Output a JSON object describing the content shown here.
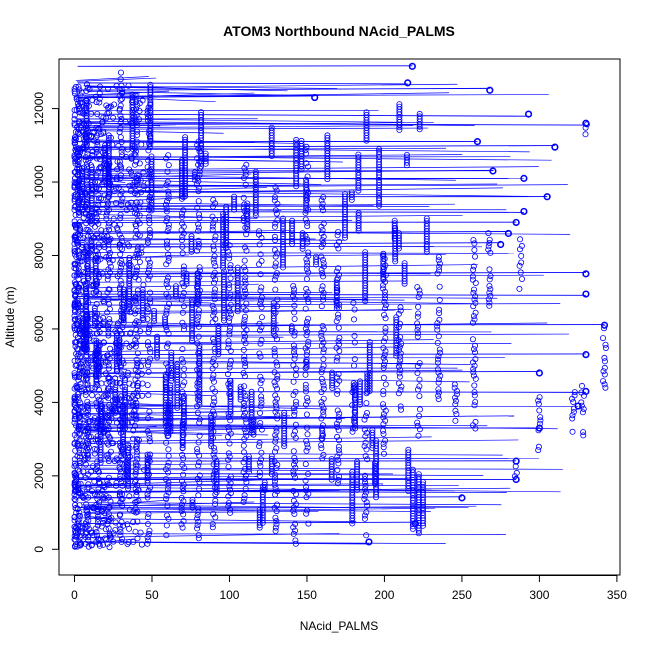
{
  "chart_data": {
    "type": "scatter",
    "title": "ATOM3 Northbound NAcid_PALMS",
    "xlabel": "NAcid_PALMS",
    "ylabel": "Altitude (m)",
    "xlim": [
      -10,
      352
    ],
    "ylim": [
      -700,
      13350
    ],
    "x_ticks": [
      0,
      50,
      100,
      150,
      200,
      250,
      300,
      350
    ],
    "x_tick_labels": [
      "0",
      "50",
      "100",
      "150",
      "200",
      "250",
      "300",
      "350"
    ],
    "y_ticks": [
      0,
      2000,
      4000,
      6000,
      8000,
      10000,
      12000
    ],
    "y_tick_labels": [
      "0",
      "2000",
      "4000",
      "6000",
      "8000",
      "10000",
      "12000"
    ],
    "grid": false,
    "legend": "none",
    "series_color": "#0000ff",
    "point_style": "open-circle",
    "lines_connected": true,
    "x_range_observed": [
      0,
      342
    ],
    "y_range_observed": [
      50,
      13200
    ],
    "series": [
      {
        "profile_columns": [
          {
            "x": 3,
            "y_min": 100,
            "y_max": 12600
          },
          {
            "x": 8,
            "y_min": 150,
            "y_max": 12900
          },
          {
            "x": 15,
            "y_min": 200,
            "y_max": 11500
          },
          {
            "x": 22,
            "y_min": 150,
            "y_max": 10500
          },
          {
            "x": 30,
            "y_min": 200,
            "y_max": 13150
          },
          {
            "x": 40,
            "y_min": 300,
            "y_max": 12400
          },
          {
            "x": 48,
            "y_min": 150,
            "y_max": 12200
          },
          {
            "x": 60,
            "y_min": 200,
            "y_max": 10800
          },
          {
            "x": 70,
            "y_min": 500,
            "y_max": 9800
          },
          {
            "x": 80,
            "y_min": 300,
            "y_max": 11200
          },
          {
            "x": 90,
            "y_min": 600,
            "y_max": 9600
          },
          {
            "x": 100,
            "y_min": 900,
            "y_max": 8300
          },
          {
            "x": 110,
            "y_min": 1200,
            "y_max": 10600
          },
          {
            "x": 120,
            "y_min": 2000,
            "y_max": 8800
          },
          {
            "x": 130,
            "y_min": 500,
            "y_max": 9900
          },
          {
            "x": 142,
            "y_min": 150,
            "y_max": 7200
          },
          {
            "x": 150,
            "y_min": 700,
            "y_max": 11000
          },
          {
            "x": 160,
            "y_min": 2300,
            "y_max": 9600
          },
          {
            "x": 170,
            "y_min": 1800,
            "y_max": 8800
          },
          {
            "x": 180,
            "y_min": 3200,
            "y_max": 6800
          },
          {
            "x": 188,
            "y_min": 200,
            "y_max": 4300
          },
          {
            "x": 200,
            "y_min": 2600,
            "y_max": 8000
          },
          {
            "x": 210,
            "y_min": 3800,
            "y_max": 6700
          },
          {
            "x": 222,
            "y_min": 3000,
            "y_max": 7200
          },
          {
            "x": 235,
            "y_min": 4000,
            "y_max": 8000
          },
          {
            "x": 246,
            "y_min": 3500,
            "y_max": 4500
          },
          {
            "x": 258,
            "y_min": 3200,
            "y_max": 8500
          },
          {
            "x": 268,
            "y_min": 6000,
            "y_max": 8800
          },
          {
            "x": 285,
            "y_min": 1900,
            "y_max": 2400
          },
          {
            "x": 288,
            "y_min": 7000,
            "y_max": 8700
          },
          {
            "x": 300,
            "y_min": 2700,
            "y_max": 4300
          },
          {
            "x": 322,
            "y_min": 3200,
            "y_max": 4300
          },
          {
            "x": 328,
            "y_min": 3100,
            "y_max": 4500
          },
          {
            "x": 330,
            "y_min": 11300,
            "y_max": 11600
          },
          {
            "x": 342,
            "y_min": 4400,
            "y_max": 6100
          }
        ],
        "horizontal_links": [
          {
            "x0": 2,
            "x1": 218,
            "y": 13150
          },
          {
            "x0": 2,
            "x1": 215,
            "y": 12700
          },
          {
            "x0": 2,
            "x1": 268,
            "y": 12500
          },
          {
            "x0": 2,
            "x1": 155,
            "y": 12300
          },
          {
            "x0": 2,
            "x1": 293,
            "y": 11850
          },
          {
            "x0": 2,
            "x1": 330,
            "y": 11600
          },
          {
            "x0": 2,
            "x1": 260,
            "y": 11100
          },
          {
            "x0": 2,
            "x1": 310,
            "y": 10950
          },
          {
            "x0": 2,
            "x1": 270,
            "y": 10300
          },
          {
            "x0": 2,
            "x1": 290,
            "y": 10100
          },
          {
            "x0": 2,
            "x1": 305,
            "y": 9600
          },
          {
            "x0": 2,
            "x1": 290,
            "y": 9200
          },
          {
            "x0": 2,
            "x1": 285,
            "y": 8900
          },
          {
            "x0": 2,
            "x1": 280,
            "y": 8600
          },
          {
            "x0": 2,
            "x1": 275,
            "y": 8300
          },
          {
            "x0": 2,
            "x1": 330,
            "y": 7500
          },
          {
            "x0": 2,
            "x1": 330,
            "y": 6950
          },
          {
            "x0": 2,
            "x1": 342,
            "y": 6100
          },
          {
            "x0": 2,
            "x1": 330,
            "y": 5300
          },
          {
            "x0": 2,
            "x1": 300,
            "y": 4800
          },
          {
            "x0": 2,
            "x1": 330,
            "y": 4300
          },
          {
            "x0": 2,
            "x1": 325,
            "y": 3900
          },
          {
            "x0": 2,
            "x1": 300,
            "y": 3300
          },
          {
            "x0": 2,
            "x1": 285,
            "y": 2400
          },
          {
            "x0": 2,
            "x1": 285,
            "y": 1900
          },
          {
            "x0": 2,
            "x1": 250,
            "y": 1400
          },
          {
            "x0": 2,
            "x1": 220,
            "y": 700
          },
          {
            "x0": 2,
            "x1": 190,
            "y": 200
          }
        ]
      }
    ]
  }
}
